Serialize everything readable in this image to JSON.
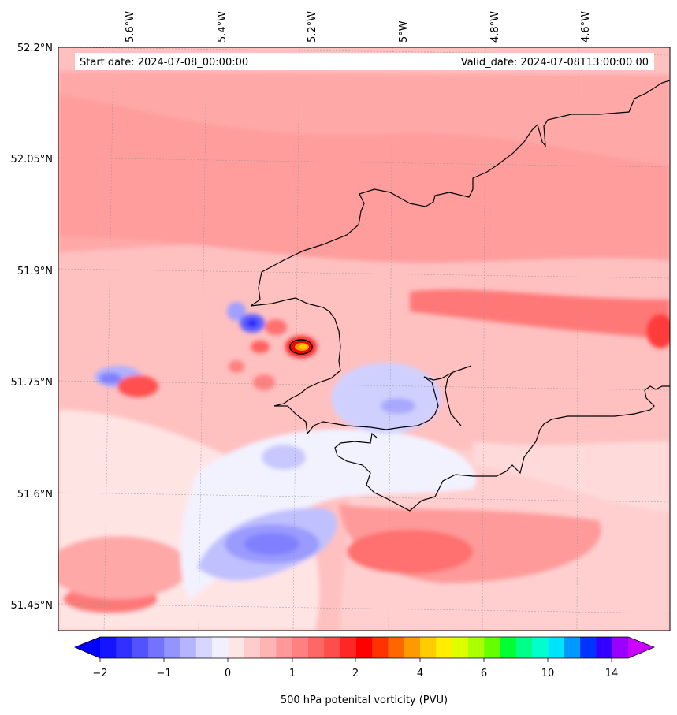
{
  "map": {
    "start_date": "Start date: 2024-07-08_00:00:00",
    "valid_date": "Valid_date: 2024-07-08T13:00:00.00",
    "lon_labels": [
      "5.6°W",
      "5.4°W",
      "5.2°W",
      "5°W",
      "4.8°W",
      "4.6°W"
    ],
    "lat_labels": [
      "52.2°N",
      "52.05°N",
      "51.9°N",
      "51.75°N",
      "51.6°N",
      "51.45°N"
    ],
    "coastline_color": "#000000"
  },
  "colorbar": {
    "title": "500 hPa potenital vorticity (PVU)",
    "tick_labels": [
      "−2",
      "−1",
      "0",
      "1",
      "2",
      "4",
      "6",
      "10",
      "14"
    ],
    "colors": [
      "#1414ff",
      "#3030ff",
      "#5252ff",
      "#7373ff",
      "#9494ff",
      "#b5b5ff",
      "#d6d6ff",
      "#f0f0ff",
      "#ffe6e6",
      "#ffcccc",
      "#ffb3b3",
      "#ff9999",
      "#ff8080",
      "#ff6666",
      "#ff4d4d",
      "#ff2626",
      "#ff0000",
      "#ff3300",
      "#ff6600",
      "#ff9900",
      "#ffcc00",
      "#ffee00",
      "#ddff00",
      "#aaff00",
      "#66ff00",
      "#00ff33",
      "#00ff88",
      "#00ffcc",
      "#00e5ff",
      "#0099ff",
      "#0033ff",
      "#3300ff",
      "#9900ff"
    ],
    "under_color": "#0000ff",
    "over_color": "#cc00ff"
  }
}
